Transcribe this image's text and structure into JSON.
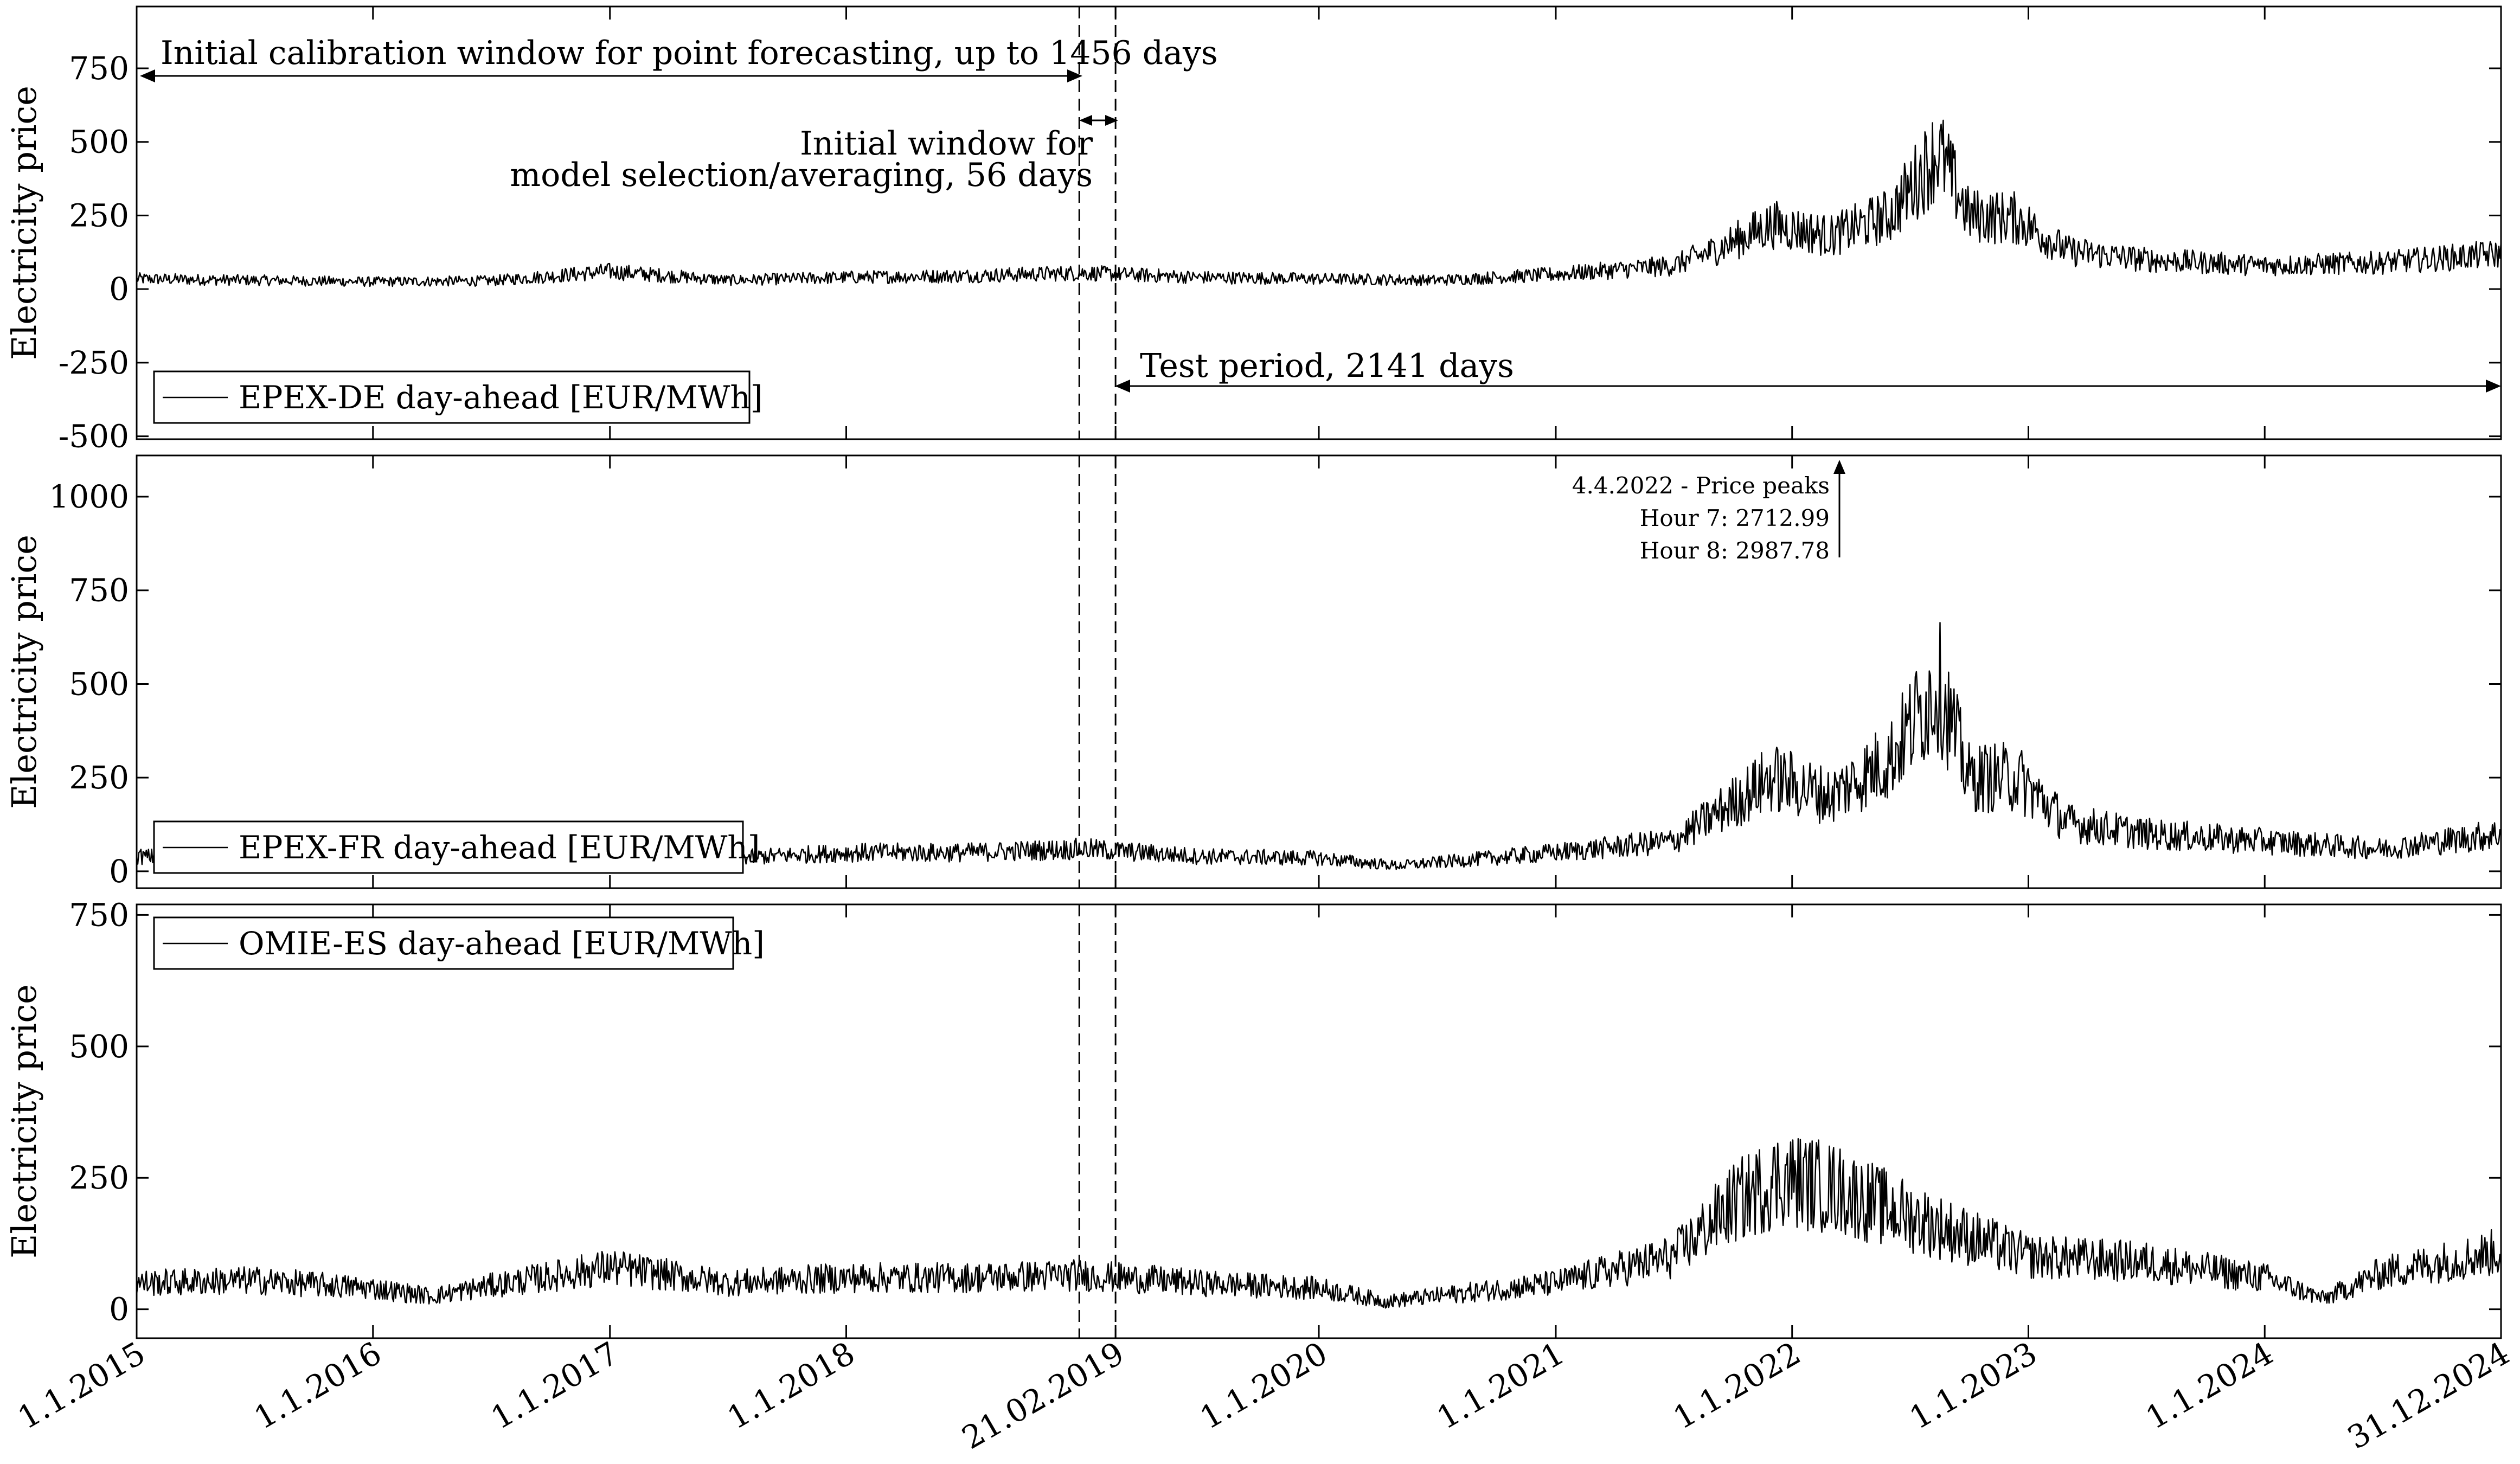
{
  "chart_data": [
    {
      "type": "line",
      "id": "de",
      "ylabel": "Electricity price",
      "ylim": [
        -510,
        960
      ],
      "yticks": [
        -500,
        -250,
        0,
        250,
        500,
        750
      ],
      "ytick_labels": [
        "-500",
        "-250",
        "0",
        "250",
        "500",
        "750"
      ],
      "legend": "EPEX-DE day-ahead [EUR/MWh]",
      "legend_position": "bottom-left",
      "series": [
        {
          "name": "EPEX-DE day-ahead [EUR/MWh]",
          "x": [
            "2015-01-01",
            "2015-07-01",
            "2016-01-01",
            "2016-07-01",
            "2017-01-01",
            "2017-07-01",
            "2018-01-01",
            "2018-07-01",
            "2019-01-01",
            "2019-07-01",
            "2020-01-01",
            "2020-07-01",
            "2021-01-01",
            "2021-07-01",
            "2021-09-01",
            "2021-12-01",
            "2022-03-01",
            "2022-06-01",
            "2022-08-15",
            "2022-10-01",
            "2022-12-15",
            "2023-03-01",
            "2023-07-01",
            "2024-01-01",
            "2024-07-01",
            "2024-12-31"
          ],
          "y": [
            35,
            30,
            25,
            28,
            60,
            30,
            40,
            45,
            55,
            40,
            35,
            30,
            50,
            80,
            130,
            220,
            180,
            250,
            470,
            250,
            240,
            130,
            100,
            80,
            90,
            120
          ]
        }
      ],
      "annotations": [
        {
          "text": "Initial calibration window for point forecasting, up to 1456 days"
        },
        {
          "text_lines": [
            "Initial window for",
            "model selection/averaging, 56 days"
          ]
        },
        {
          "text": "Test period, 2141 days"
        }
      ]
    },
    {
      "type": "line",
      "id": "fr",
      "ylabel": "Electricity price",
      "ylim": [
        -45,
        1110
      ],
      "yticks": [
        0,
        250,
        500,
        750,
        1000
      ],
      "ytick_labels": [
        "0",
        "250",
        "500",
        "750",
        "1000"
      ],
      "legend": "EPEX-FR day-ahead [EUR/MWh]",
      "legend_position": "bottom-left",
      "series": [
        {
          "name": "EPEX-FR day-ahead [EUR/MWh]",
          "x": [
            "2015-01-01",
            "2015-07-01",
            "2016-01-01",
            "2016-07-01",
            "2016-11-15",
            "2017-01-15",
            "2017-07-01",
            "2018-01-01",
            "2018-07-01",
            "2019-01-01",
            "2019-07-01",
            "2020-01-01",
            "2020-05-01",
            "2021-01-01",
            "2021-07-01",
            "2021-12-01",
            "2022-03-01",
            "2022-06-01",
            "2022-08-15",
            "2022-10-01",
            "2022-12-15",
            "2023-03-01",
            "2023-07-01",
            "2024-01-01",
            "2024-07-01",
            "2024-12-31"
          ],
          "y": [
            40,
            30,
            30,
            30,
            60,
            80,
            35,
            50,
            50,
            60,
            40,
            35,
            15,
            50,
            80,
            250,
            200,
            300,
            500,
            250,
            250,
            130,
            100,
            80,
            60,
            100
          ]
        }
      ],
      "annotations": [
        {
          "text_lines": [
            "4.4.2022 - Price peaks",
            "Hour 7: 2712.99",
            "Hour 8: 2987.78"
          ]
        }
      ]
    },
    {
      "type": "line",
      "id": "es",
      "ylabel": "Electricity price",
      "ylim": [
        -55,
        770
      ],
      "yticks": [
        0,
        250,
        500,
        750
      ],
      "ytick_labels": [
        "0",
        "250",
        "500",
        "750"
      ],
      "legend": "OMIE-ES day-ahead [EUR/MWh]",
      "legend_position": "top-left",
      "series": [
        {
          "name": "OMIE-ES day-ahead [EUR/MWh]",
          "x": [
            "2015-01-01",
            "2015-07-01",
            "2016-01-01",
            "2016-04-01",
            "2016-07-01",
            "2017-01-01",
            "2017-07-01",
            "2018-01-01",
            "2018-07-01",
            "2019-01-01",
            "2019-07-01",
            "2020-01-01",
            "2020-04-15",
            "2021-01-01",
            "2021-07-01",
            "2021-10-01",
            "2021-12-15",
            "2022-03-08",
            "2022-06-01",
            "2022-09-01",
            "2023-01-01",
            "2023-07-01",
            "2024-01-01",
            "2024-04-01",
            "2024-07-01",
            "2024-12-31"
          ],
          "y": [
            50,
            55,
            40,
            25,
            45,
            80,
            50,
            60,
            60,
            65,
            50,
            40,
            15,
            50,
            100,
            200,
            250,
            230,
            190,
            150,
            100,
            90,
            60,
            20,
            70,
            110
          ]
        }
      ]
    }
  ],
  "x_axis": {
    "range": [
      "2015-01-01",
      "2024-12-31"
    ],
    "tick_dates": [
      "2015-01-01",
      "2016-01-01",
      "2017-01-01",
      "2018-01-01",
      "2019-02-21",
      "2020-01-01",
      "2021-01-01",
      "2022-01-01",
      "2023-01-01",
      "2024-01-01",
      "2024-12-31"
    ],
    "tick_labels": [
      "1.1.2015",
      "1.1.2016",
      "1.1.2017",
      "1.1.2018",
      "21.02.2019",
      "1.1.2020",
      "1.1.2021",
      "1.1.2022",
      "1.1.2023",
      "1.1.2024",
      "31.12.2024"
    ],
    "vlines": [
      "2018-12-27",
      "2019-02-21"
    ]
  }
}
